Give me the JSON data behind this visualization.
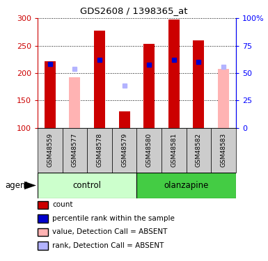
{
  "title": "GDS2608 / 1398365_at",
  "samples": [
    "GSM48559",
    "GSM48577",
    "GSM48578",
    "GSM48579",
    "GSM48580",
    "GSM48581",
    "GSM48582",
    "GSM48583"
  ],
  "count_values": [
    222,
    null,
    278,
    130,
    253,
    298,
    260,
    null
  ],
  "rank_values": [
    216,
    null,
    224,
    null,
    215,
    224,
    220,
    null
  ],
  "absent_value": [
    null,
    192,
    null,
    null,
    null,
    null,
    null,
    207
  ],
  "absent_rank": [
    null,
    208,
    null,
    177,
    null,
    null,
    null,
    211
  ],
  "ylim": [
    100,
    300
  ],
  "yticks": [
    100,
    150,
    200,
    250,
    300
  ],
  "bar_color": "#cc0000",
  "rank_color": "#0000cc",
  "absent_bar_color": "#ffb3b3",
  "absent_rank_color": "#b3b3ff",
  "control_bg_light": "#ccffcc",
  "olanzapine_bg_dark": "#44cc44",
  "sample_bg": "#cccccc",
  "legend_items": [
    {
      "label": "count",
      "color": "#cc0000"
    },
    {
      "label": "percentile rank within the sample",
      "color": "#0000cc"
    },
    {
      "label": "value, Detection Call = ABSENT",
      "color": "#ffb3b3"
    },
    {
      "label": "rank, Detection Call = ABSENT",
      "color": "#b3b3ff"
    }
  ]
}
